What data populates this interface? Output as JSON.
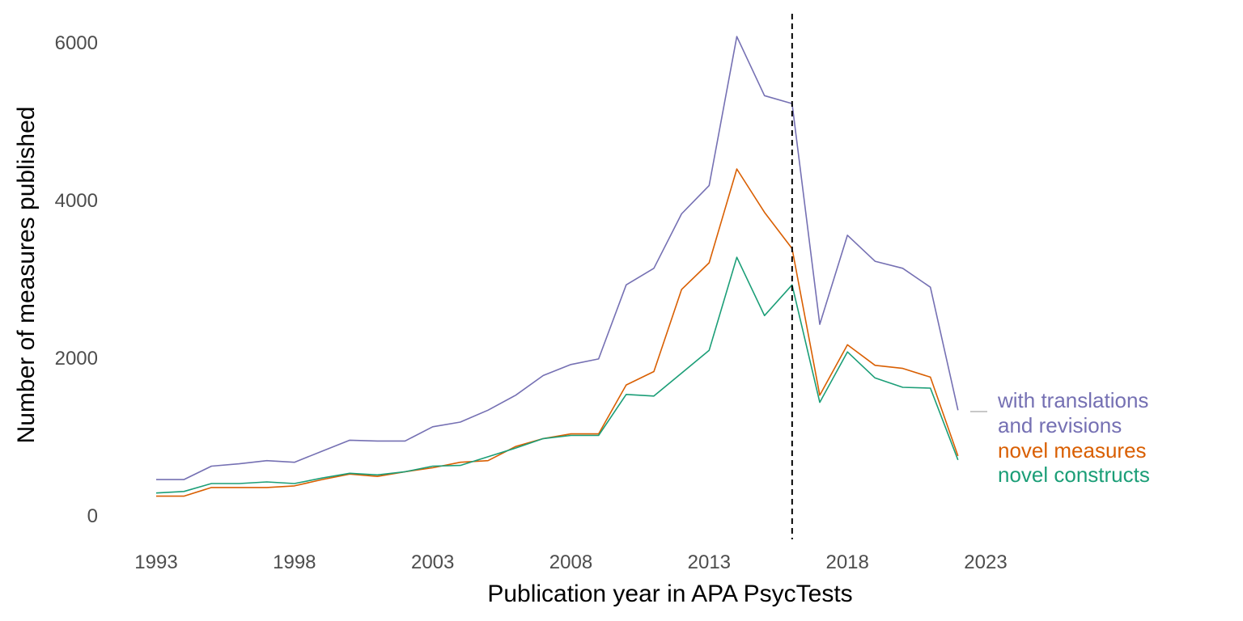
{
  "chart_data": {
    "type": "line",
    "xlabel": "Publication year in APA PsycTests",
    "ylabel": "Number of measures published",
    "xlim": [
      1993,
      2023
    ],
    "ylim": [
      0,
      6000
    ],
    "x_ticks": [
      "1993",
      "1998",
      "2003",
      "2008",
      "2013",
      "2018",
      "2023"
    ],
    "y_ticks": [
      "0",
      "2000",
      "4000",
      "6000"
    ],
    "grid": false,
    "reference_line": {
      "x": 2016,
      "style": "dashed"
    },
    "x": [
      1993,
      1994,
      1995,
      1996,
      1997,
      1998,
      1999,
      2000,
      2001,
      2002,
      2003,
      2004,
      2005,
      2006,
      2007,
      2008,
      2009,
      2010,
      2011,
      2012,
      2013,
      2014,
      2015,
      2016,
      2017,
      2018,
      2019,
      2020,
      2021,
      2022
    ],
    "series": [
      {
        "name": "with translations and revisions",
        "color": "#7570b3",
        "values": [
          450,
          450,
          620,
          650,
          690,
          670,
          810,
          950,
          940,
          940,
          1120,
          1180,
          1330,
          1520,
          1770,
          1910,
          1980,
          2920,
          3130,
          3820,
          4180,
          6070,
          5320,
          5220,
          2420,
          3550,
          3220,
          3130,
          2890,
          1330
        ]
      },
      {
        "name": "novel measures",
        "color": "#d95f02",
        "values": [
          240,
          240,
          350,
          350,
          350,
          370,
          450,
          520,
          490,
          550,
          600,
          670,
          690,
          870,
          970,
          1030,
          1030,
          1650,
          1820,
          2860,
          3200,
          4390,
          3840,
          3380,
          1520,
          2160,
          1900,
          1860,
          1750,
          750
        ]
      },
      {
        "name": "novel constructs",
        "color": "#1b9e77",
        "values": [
          280,
          300,
          400,
          400,
          420,
          400,
          470,
          530,
          510,
          550,
          620,
          630,
          740,
          850,
          970,
          1010,
          1010,
          1530,
          1510,
          1800,
          2090,
          3270,
          2530,
          2920,
          1430,
          2070,
          1740,
          1620,
          1610,
          700
        ]
      }
    ],
    "legend": {
      "placement": "right",
      "lines": [
        {
          "text": "with translations",
          "color": "#7570b3"
        },
        {
          "text": "and revisions",
          "color": "#7570b3"
        },
        {
          "text": "novel measures",
          "color": "#d95f02"
        },
        {
          "text": "novel constructs",
          "color": "#1b9e77"
        }
      ],
      "key_color": "#c8c8c8"
    }
  }
}
